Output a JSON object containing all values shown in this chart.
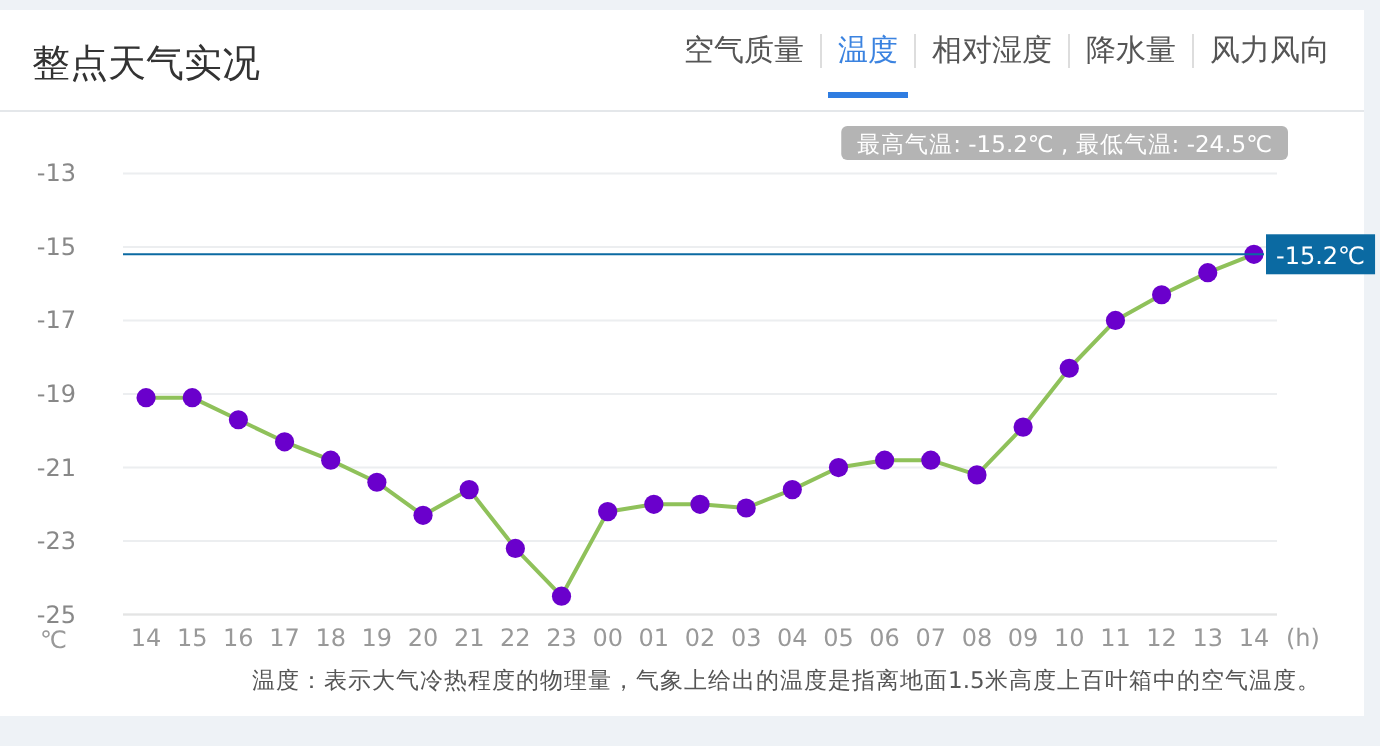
{
  "chart_data": {
    "type": "line",
    "title": "整点天气实况",
    "xlabel": "(h)",
    "ylabel": "℃",
    "categories": [
      "14",
      "15",
      "16",
      "17",
      "18",
      "19",
      "20",
      "21",
      "22",
      "23",
      "00",
      "01",
      "02",
      "03",
      "04",
      "05",
      "06",
      "07",
      "08",
      "09",
      "10",
      "11",
      "12",
      "13",
      "14"
    ],
    "series": [
      {
        "color": "#8fc15a",
        "values": [
          -19.1,
          -19.1,
          -19.7,
          -20.3,
          -20.8,
          -21.4,
          -22.3,
          -21.6,
          -23.2,
          -24.5,
          -22.2,
          -22.0,
          -22.0,
          -22.1,
          -21.6,
          -21.0,
          -20.8,
          -20.8,
          -21.2,
          -19.9,
          -18.3,
          -17.0,
          -16.3,
          -15.7,
          -15.2
        ]
      }
    ],
    "marker": "circle",
    "line_style": "solid",
    "grid": "y",
    "ylim": [
      -25,
      -13
    ],
    "yticks": [
      -25,
      -23,
      -21,
      -19,
      -17,
      -15,
      -13
    ],
    "ref_lines": [
      {
        "axis": "y",
        "value": -15.2,
        "label": "-15.2℃",
        "color": "#0b6aa2"
      }
    ],
    "annotations": [
      "空气质量",
      "温度",
      "相对湿度",
      "降水量",
      "风力风向",
      "最高气温: -15.2℃ , 最低气温: -24.5℃",
      "温度：表示大气冷热程度的物理量，气象上给出的温度是指离地面1.5米高度上百叶箱中的空气温度。"
    ]
  }
}
